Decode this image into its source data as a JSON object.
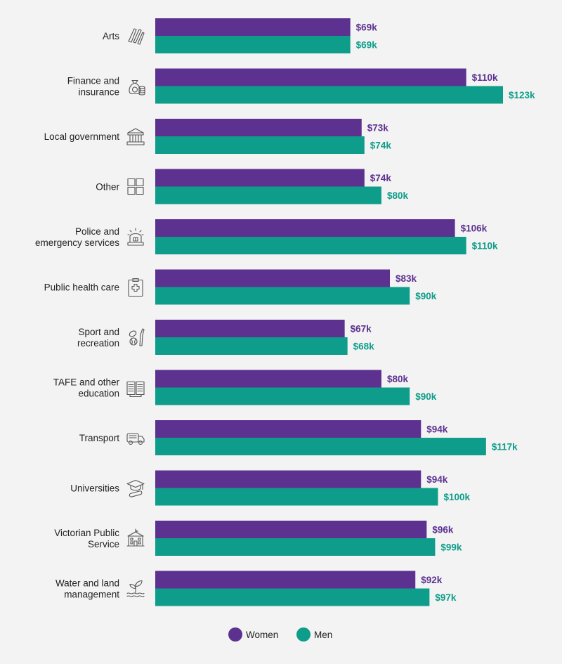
{
  "chart_data": {
    "type": "bar",
    "orientation": "horizontal",
    "categories": [
      {
        "label_lines": [
          "Arts"
        ],
        "icon": "paintbrush-icon"
      },
      {
        "label_lines": [
          "Finance and",
          "insurance"
        ],
        "icon": "money-bag-icon"
      },
      {
        "label_lines": [
          "Local government"
        ],
        "icon": "government-building-icon"
      },
      {
        "label_lines": [
          "Other"
        ],
        "icon": "grid-icon"
      },
      {
        "label_lines": [
          "Police and",
          "emergency services"
        ],
        "icon": "siren-icon"
      },
      {
        "label_lines": [
          "Public health care"
        ],
        "icon": "medical-clipboard-icon"
      },
      {
        "label_lines": [
          "Sport and",
          "recreation"
        ],
        "icon": "sport-ball-icon"
      },
      {
        "label_lines": [
          "TAFE and other",
          "education"
        ],
        "icon": "open-book-icon"
      },
      {
        "label_lines": [
          "Transport"
        ],
        "icon": "truck-icon"
      },
      {
        "label_lines": [
          "Universities"
        ],
        "icon": "graduation-cap-icon"
      },
      {
        "label_lines": [
          "Victorian Public",
          "Service"
        ],
        "icon": "public-building-icon"
      },
      {
        "label_lines": [
          "Water and land",
          "management"
        ],
        "icon": "plant-water-icon"
      }
    ],
    "series": [
      {
        "name": "Women",
        "color": "#5c3190",
        "values": [
          69,
          110,
          73,
          74,
          106,
          83,
          67,
          80,
          94,
          94,
          96,
          92
        ],
        "value_labels": [
          "$69k",
          "$110k",
          "$73k",
          "$74k",
          "$106k",
          "$83k",
          "$67k",
          "$80k",
          "$94k",
          "$94k",
          "$96k",
          "$92k"
        ]
      },
      {
        "name": "Men",
        "color": "#0e9d8a",
        "values": [
          69,
          123,
          74,
          80,
          110,
          90,
          68,
          90,
          117,
          100,
          99,
          97
        ],
        "value_labels": [
          "$69k",
          "$123k",
          "$74k",
          "$80k",
          "$110k",
          "$90k",
          "$68k",
          "$90k",
          "$117k",
          "$100k",
          "$99k",
          "$97k"
        ]
      }
    ],
    "unit": "$k",
    "xlim": [
      0,
      128
    ],
    "grid": false,
    "legend_position": "bottom"
  }
}
